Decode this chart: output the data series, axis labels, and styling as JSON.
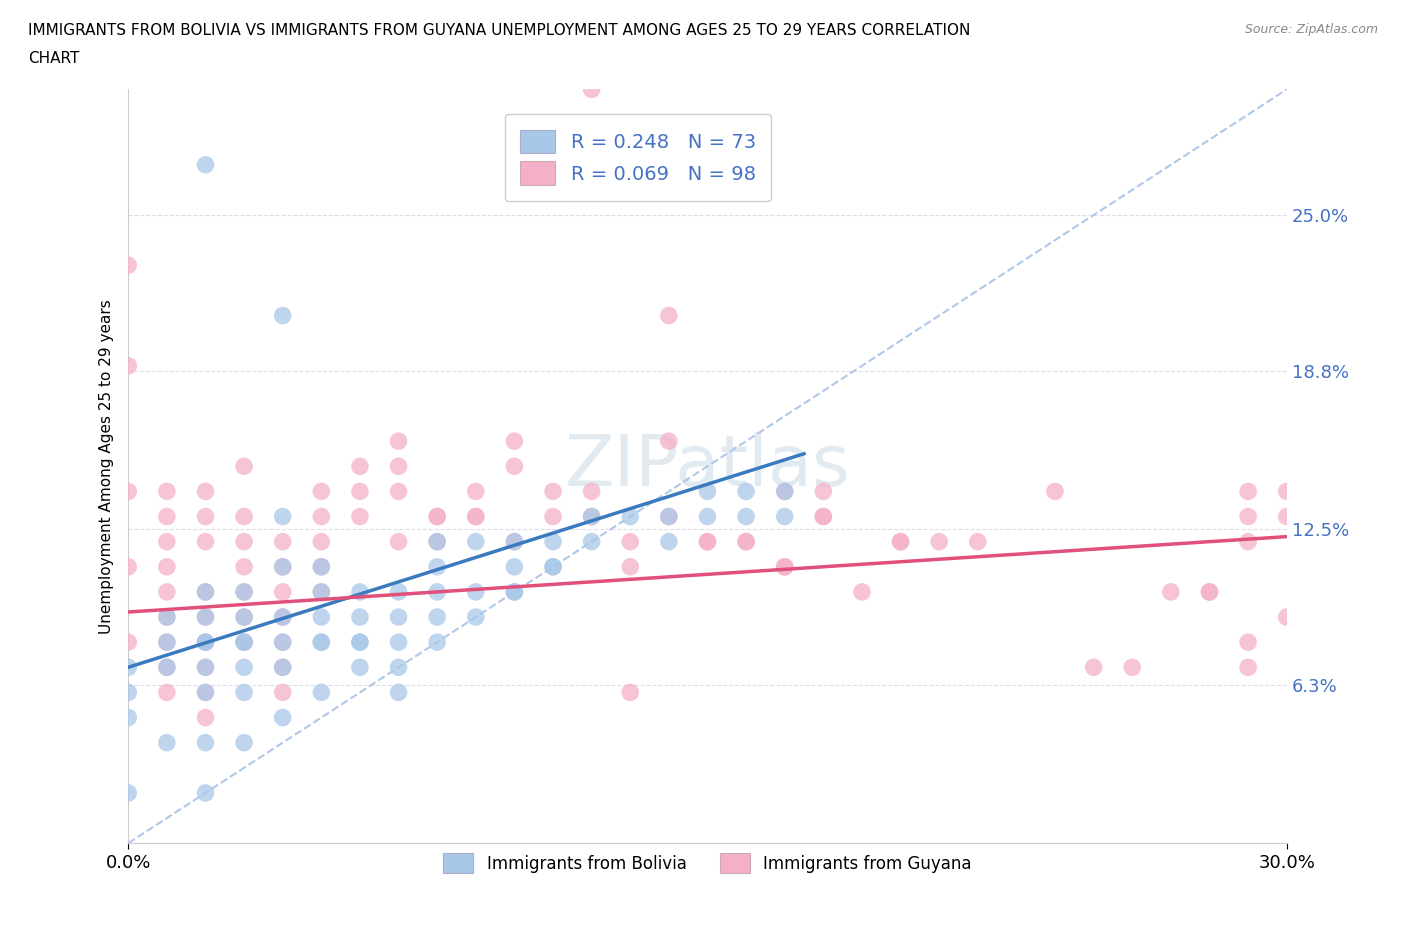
{
  "title_line1": "IMMIGRANTS FROM BOLIVIA VS IMMIGRANTS FROM GUYANA UNEMPLOYMENT AMONG AGES 25 TO 29 YEARS CORRELATION",
  "title_line2": "CHART",
  "source": "Source: ZipAtlas.com",
  "ylabel_label": "Unemployment Among Ages 25 to 29 years",
  "legend_bottom": [
    "Immigrants from Bolivia",
    "Immigrants from Guyana"
  ],
  "bolivia_color": "#a8c8e8",
  "guyana_color": "#f4b0c8",
  "bolivia_line_color": "#3a7abf",
  "guyana_line_color": "#e0507a",
  "ref_line_color": "#b0c8e8",
  "bolivia_R": 0.248,
  "bolivia_N": 73,
  "guyana_R": 0.069,
  "guyana_N": 98,
  "xlim": [
    0.0,
    0.3
  ],
  "ylim": [
    0.0,
    0.3
  ],
  "yticks": [
    0.063,
    0.125,
    0.188,
    0.25
  ],
  "ytick_labels": [
    "6.3%",
    "12.5%",
    "18.8%",
    "25.0%"
  ],
  "xticks": [
    0.0,
    0.3
  ],
  "xtick_labels": [
    "0.0%",
    "30.0%"
  ],
  "bolivia_line_x": [
    0.0,
    0.175
  ],
  "bolivia_line_y": [
    0.07,
    0.155
  ],
  "guyana_line_x": [
    0.0,
    0.3
  ],
  "guyana_line_y": [
    0.092,
    0.122
  ],
  "ref_line_x": [
    0.0,
    0.3
  ],
  "ref_line_y": [
    0.0,
    0.3
  ],
  "bolivia_scatter_x": [
    0.02,
    0.04,
    0.0,
    0.0,
    0.0,
    0.01,
    0.01,
    0.01,
    0.02,
    0.02,
    0.02,
    0.02,
    0.02,
    0.02,
    0.02,
    0.03,
    0.03,
    0.03,
    0.03,
    0.03,
    0.03,
    0.04,
    0.04,
    0.04,
    0.04,
    0.04,
    0.05,
    0.05,
    0.05,
    0.05,
    0.05,
    0.06,
    0.06,
    0.06,
    0.06,
    0.07,
    0.07,
    0.07,
    0.08,
    0.08,
    0.08,
    0.08,
    0.09,
    0.09,
    0.1,
    0.1,
    0.1,
    0.11,
    0.11,
    0.12,
    0.12,
    0.13,
    0.14,
    0.14,
    0.15,
    0.15,
    0.16,
    0.16,
    0.17,
    0.17,
    0.07,
    0.07,
    0.08,
    0.09,
    0.1,
    0.11,
    0.06,
    0.05,
    0.04,
    0.03,
    0.02,
    0.01,
    0.0
  ],
  "bolivia_scatter_y": [
    0.27,
    0.21,
    0.07,
    0.05,
    0.02,
    0.09,
    0.07,
    0.04,
    0.1,
    0.09,
    0.08,
    0.07,
    0.06,
    0.04,
    0.02,
    0.1,
    0.09,
    0.08,
    0.07,
    0.06,
    0.04,
    0.13,
    0.11,
    0.09,
    0.07,
    0.05,
    0.11,
    0.1,
    0.09,
    0.08,
    0.06,
    0.1,
    0.09,
    0.08,
    0.07,
    0.1,
    0.09,
    0.08,
    0.12,
    0.11,
    0.1,
    0.08,
    0.12,
    0.1,
    0.12,
    0.11,
    0.1,
    0.12,
    0.11,
    0.13,
    0.12,
    0.13,
    0.13,
    0.12,
    0.14,
    0.13,
    0.14,
    0.13,
    0.14,
    0.13,
    0.07,
    0.06,
    0.09,
    0.09,
    0.1,
    0.11,
    0.08,
    0.08,
    0.08,
    0.08,
    0.08,
    0.08,
    0.06
  ],
  "guyana_scatter_x": [
    0.0,
    0.0,
    0.0,
    0.0,
    0.0,
    0.01,
    0.01,
    0.01,
    0.01,
    0.01,
    0.01,
    0.01,
    0.01,
    0.01,
    0.02,
    0.02,
    0.02,
    0.02,
    0.02,
    0.02,
    0.02,
    0.02,
    0.02,
    0.03,
    0.03,
    0.03,
    0.03,
    0.03,
    0.03,
    0.03,
    0.04,
    0.04,
    0.04,
    0.04,
    0.04,
    0.04,
    0.04,
    0.05,
    0.05,
    0.05,
    0.05,
    0.05,
    0.06,
    0.06,
    0.06,
    0.07,
    0.07,
    0.07,
    0.08,
    0.08,
    0.09,
    0.09,
    0.1,
    0.1,
    0.11,
    0.11,
    0.12,
    0.12,
    0.13,
    0.14,
    0.15,
    0.16,
    0.17,
    0.17,
    0.18,
    0.14,
    0.22,
    0.18,
    0.13,
    0.2,
    0.24,
    0.28,
    0.29,
    0.29,
    0.29,
    0.29,
    0.3,
    0.3,
    0.3,
    0.28,
    0.26,
    0.25,
    0.27,
    0.29,
    0.21,
    0.2,
    0.19,
    0.18,
    0.17,
    0.16,
    0.15,
    0.14,
    0.13,
    0.12,
    0.1,
    0.09,
    0.08,
    0.07
  ],
  "guyana_scatter_y": [
    0.23,
    0.19,
    0.14,
    0.11,
    0.08,
    0.14,
    0.13,
    0.12,
    0.11,
    0.1,
    0.09,
    0.08,
    0.07,
    0.06,
    0.14,
    0.13,
    0.12,
    0.1,
    0.09,
    0.08,
    0.07,
    0.06,
    0.05,
    0.15,
    0.13,
    0.12,
    0.11,
    0.1,
    0.09,
    0.08,
    0.12,
    0.11,
    0.1,
    0.09,
    0.08,
    0.07,
    0.06,
    0.14,
    0.13,
    0.12,
    0.11,
    0.1,
    0.15,
    0.14,
    0.13,
    0.16,
    0.15,
    0.14,
    0.13,
    0.12,
    0.14,
    0.13,
    0.16,
    0.15,
    0.14,
    0.13,
    0.3,
    0.14,
    0.11,
    0.21,
    0.12,
    0.12,
    0.14,
    0.11,
    0.14,
    0.16,
    0.12,
    0.13,
    0.06,
    0.12,
    0.14,
    0.1,
    0.14,
    0.13,
    0.08,
    0.07,
    0.14,
    0.13,
    0.09,
    0.1,
    0.07,
    0.07,
    0.1,
    0.12,
    0.12,
    0.12,
    0.1,
    0.13,
    0.11,
    0.12,
    0.12,
    0.13,
    0.12,
    0.13,
    0.12,
    0.13,
    0.13,
    0.12
  ]
}
